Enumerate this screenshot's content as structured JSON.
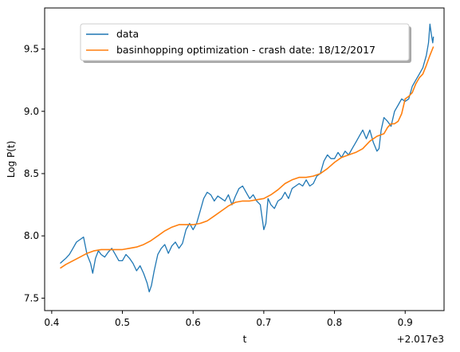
{
  "chart_data": {
    "type": "line",
    "xlabel": "t",
    "ylabel": "Log P(t)",
    "x_offset_text": "+2.017e3",
    "xlim": [
      0.39,
      0.955
    ],
    "ylim": [
      7.4,
      9.83
    ],
    "x_ticks": [
      0.4,
      0.5,
      0.6,
      0.7,
      0.8,
      0.9
    ],
    "x_tick_labels": [
      "0.4",
      "0.5",
      "0.6",
      "0.7",
      "0.8",
      "0.9"
    ],
    "y_ticks": [
      7.5,
      8.0,
      8.5,
      9.0,
      9.5
    ],
    "y_tick_labels": [
      "7.5",
      "8.0",
      "8.5",
      "9.0",
      "9.5"
    ],
    "grid": false,
    "legend": {
      "placement": "top-center",
      "shadow": true
    },
    "series": [
      {
        "name": "data",
        "color": "#1f77b4",
        "x": [
          0.412,
          0.416,
          0.42,
          0.425,
          0.43,
          0.435,
          0.44,
          0.445,
          0.45,
          0.455,
          0.458,
          0.462,
          0.466,
          0.47,
          0.475,
          0.48,
          0.485,
          0.49,
          0.495,
          0.5,
          0.505,
          0.51,
          0.515,
          0.52,
          0.525,
          0.53,
          0.535,
          0.538,
          0.541,
          0.545,
          0.55,
          0.555,
          0.56,
          0.565,
          0.57,
          0.575,
          0.58,
          0.585,
          0.59,
          0.595,
          0.6,
          0.605,
          0.61,
          0.615,
          0.62,
          0.625,
          0.63,
          0.635,
          0.64,
          0.645,
          0.65,
          0.655,
          0.66,
          0.665,
          0.67,
          0.675,
          0.68,
          0.685,
          0.69,
          0.695,
          0.7,
          0.703,
          0.706,
          0.71,
          0.715,
          0.72,
          0.725,
          0.73,
          0.735,
          0.74,
          0.745,
          0.75,
          0.755,
          0.76,
          0.765,
          0.77,
          0.775,
          0.78,
          0.785,
          0.79,
          0.795,
          0.8,
          0.805,
          0.81,
          0.815,
          0.82,
          0.825,
          0.83,
          0.835,
          0.84,
          0.845,
          0.85,
          0.855,
          0.86,
          0.863,
          0.866,
          0.87,
          0.875,
          0.88,
          0.885,
          0.89,
          0.895,
          0.9,
          0.905,
          0.91,
          0.915,
          0.92,
          0.925,
          0.93,
          0.933,
          0.935,
          0.937,
          0.939,
          0.94
        ],
        "y": [
          7.78,
          7.8,
          7.82,
          7.85,
          7.9,
          7.95,
          7.97,
          7.99,
          7.85,
          7.78,
          7.7,
          7.82,
          7.88,
          7.85,
          7.83,
          7.87,
          7.9,
          7.85,
          7.8,
          7.8,
          7.85,
          7.82,
          7.78,
          7.72,
          7.76,
          7.7,
          7.62,
          7.55,
          7.6,
          7.72,
          7.85,
          7.9,
          7.93,
          7.86,
          7.92,
          7.95,
          7.9,
          7.94,
          8.05,
          8.1,
          8.05,
          8.1,
          8.2,
          8.3,
          8.35,
          8.33,
          8.28,
          8.32,
          8.3,
          8.28,
          8.33,
          8.25,
          8.32,
          8.38,
          8.4,
          8.35,
          8.3,
          8.33,
          8.28,
          8.25,
          8.05,
          8.1,
          8.3,
          8.25,
          8.22,
          8.28,
          8.3,
          8.35,
          8.3,
          8.38,
          8.4,
          8.42,
          8.4,
          8.45,
          8.4,
          8.42,
          8.48,
          8.5,
          8.6,
          8.65,
          8.62,
          8.62,
          8.67,
          8.63,
          8.68,
          8.65,
          8.7,
          8.75,
          8.8,
          8.85,
          8.78,
          8.85,
          8.75,
          8.68,
          8.7,
          8.85,
          8.95,
          8.92,
          8.88,
          9.0,
          9.05,
          9.1,
          9.08,
          9.1,
          9.2,
          9.25,
          9.3,
          9.35,
          9.45,
          9.55,
          9.7,
          9.62,
          9.55,
          9.6
        ]
      },
      {
        "name": "basinhopping optimization - crash date: 18/12/2017",
        "color": "#ff7f0e",
        "x": [
          0.412,
          0.42,
          0.43,
          0.44,
          0.45,
          0.46,
          0.47,
          0.48,
          0.49,
          0.5,
          0.51,
          0.52,
          0.53,
          0.54,
          0.55,
          0.56,
          0.57,
          0.58,
          0.59,
          0.6,
          0.61,
          0.62,
          0.63,
          0.64,
          0.65,
          0.66,
          0.67,
          0.68,
          0.69,
          0.7,
          0.71,
          0.72,
          0.73,
          0.74,
          0.75,
          0.76,
          0.77,
          0.78,
          0.79,
          0.8,
          0.81,
          0.82,
          0.83,
          0.84,
          0.85,
          0.86,
          0.87,
          0.875,
          0.88,
          0.885,
          0.89,
          0.895,
          0.9,
          0.905,
          0.91,
          0.915,
          0.92,
          0.925,
          0.93,
          0.935,
          0.94
        ],
        "y": [
          7.74,
          7.77,
          7.8,
          7.83,
          7.86,
          7.88,
          7.89,
          7.89,
          7.89,
          7.89,
          7.9,
          7.91,
          7.93,
          7.96,
          8.0,
          8.04,
          8.07,
          8.09,
          8.09,
          8.09,
          8.1,
          8.12,
          8.16,
          8.2,
          8.24,
          8.27,
          8.28,
          8.28,
          8.29,
          8.3,
          8.33,
          8.37,
          8.42,
          8.45,
          8.47,
          8.47,
          8.48,
          8.5,
          8.54,
          8.59,
          8.63,
          8.65,
          8.67,
          8.7,
          8.76,
          8.8,
          8.82,
          8.87,
          8.9,
          8.9,
          8.92,
          8.98,
          9.1,
          9.12,
          9.15,
          9.22,
          9.27,
          9.3,
          9.37,
          9.45,
          9.52
        ]
      }
    ]
  }
}
